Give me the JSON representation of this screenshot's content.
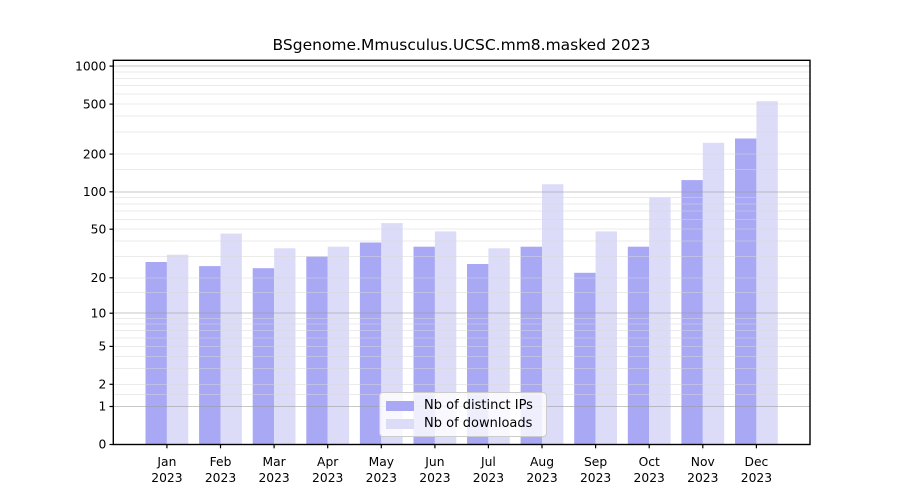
{
  "chart_data": {
    "type": "bar",
    "title": "BSgenome.Mmusculus.UCSC.mm8.masked 2023",
    "months": [
      "Jan",
      "Feb",
      "Mar",
      "Apr",
      "May",
      "Jun",
      "Jul",
      "Aug",
      "Sep",
      "Oct",
      "Nov",
      "Dec"
    ],
    "year_label": "2023",
    "series": [
      {
        "name": "Nb of distinct IPs",
        "color": "#a8a8f4",
        "values": [
          27,
          25,
          24,
          30,
          39,
          36,
          26,
          36,
          22,
          36,
          124,
          266
        ]
      },
      {
        "name": "Nb of downloads",
        "color": "#dcdcf9",
        "values": [
          31,
          46,
          35,
          36,
          56,
          48,
          35,
          115,
          48,
          90,
          246,
          527
        ]
      }
    ],
    "y_scale": "log10(1+x)",
    "y_tick_values": [
      0,
      1,
      2,
      5,
      10,
      20,
      50,
      100,
      200,
      500,
      1000
    ],
    "ylim": [
      0,
      1113
    ],
    "grid": {
      "major_values": [
        1,
        10,
        100,
        1000
      ],
      "minor_multipliers": [
        1.5,
        2,
        3,
        4,
        5,
        6,
        7,
        8,
        9
      ],
      "major_color": "#9a9a9a",
      "minor_color": "#d9d9d9"
    },
    "legend_position": "inside bottom center"
  }
}
